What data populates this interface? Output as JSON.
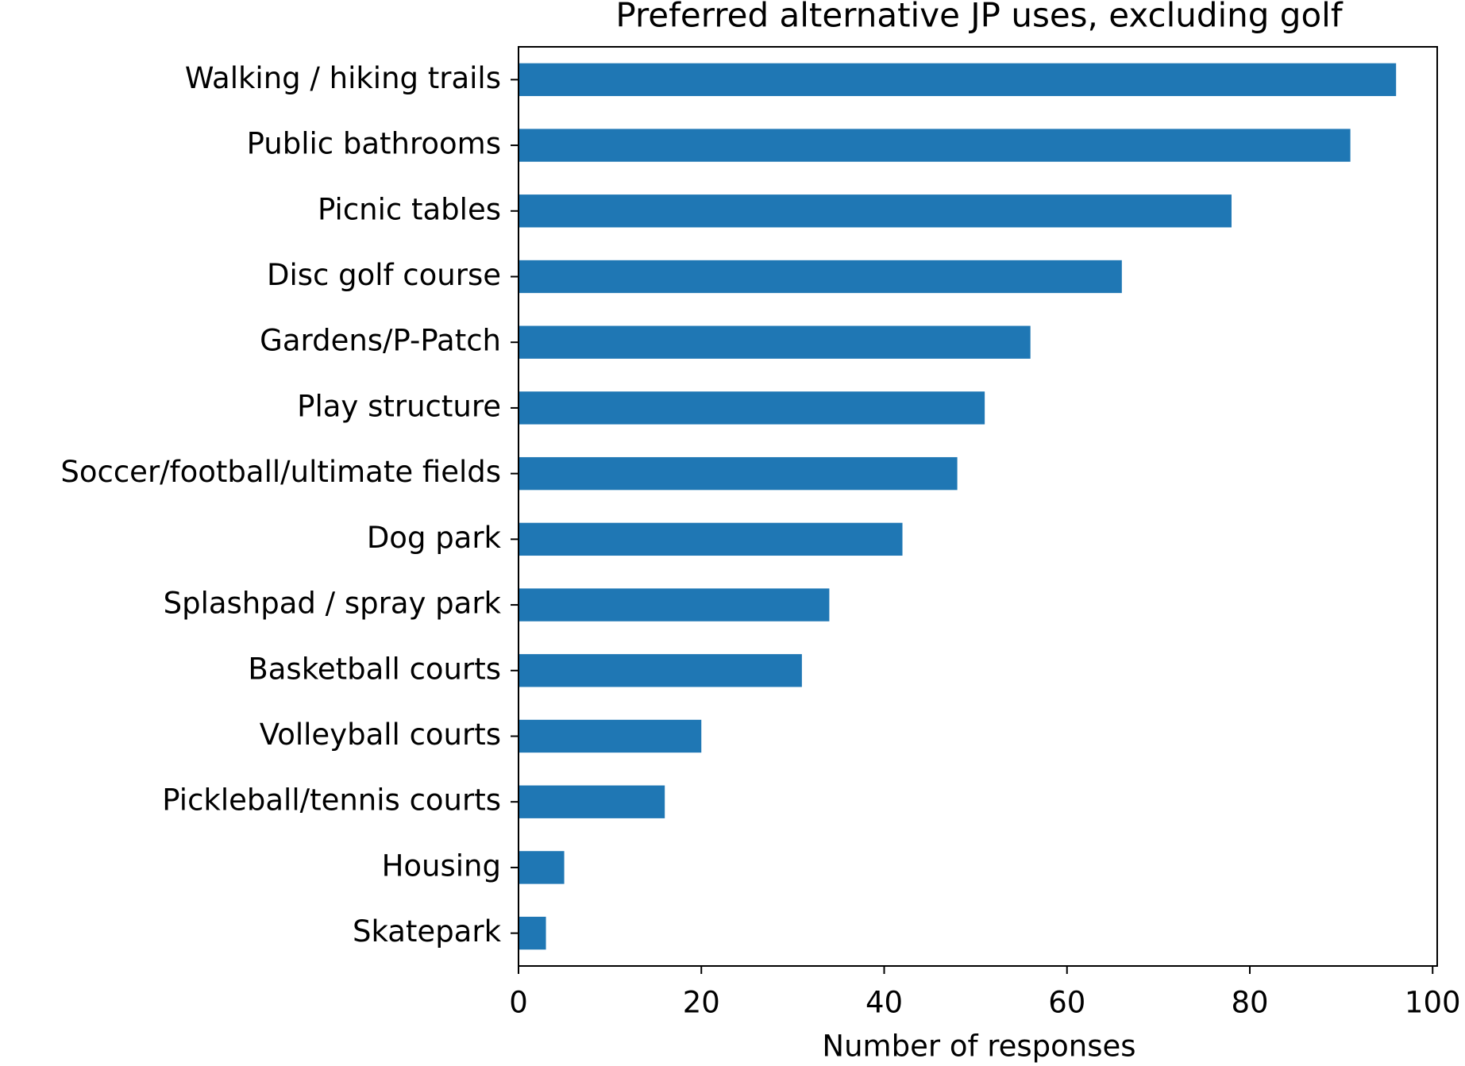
{
  "chart_data": {
    "type": "barh",
    "title": "Preferred alternative JP uses, excluding golf",
    "xlabel": "Number of responses",
    "categories": [
      "Walking / hiking trails",
      "Public bathrooms",
      "Picnic tables",
      "Disc golf course",
      "Gardens/P-Patch",
      "Play structure",
      "Soccer/football/ultimate fields",
      "Dog park",
      "Splashpad / spray park",
      "Basketball courts",
      "Volleyball courts",
      "Pickleball/tennis courts",
      "Housing",
      "Skatepark"
    ],
    "values": [
      96,
      91,
      78,
      66,
      56,
      51,
      48,
      42,
      34,
      31,
      20,
      16,
      5,
      3
    ],
    "color": "#1f77b4",
    "xlim": [
      0,
      100.5
    ],
    "xticks": [
      0,
      20,
      40,
      60,
      80,
      100
    ],
    "grid": false
  }
}
